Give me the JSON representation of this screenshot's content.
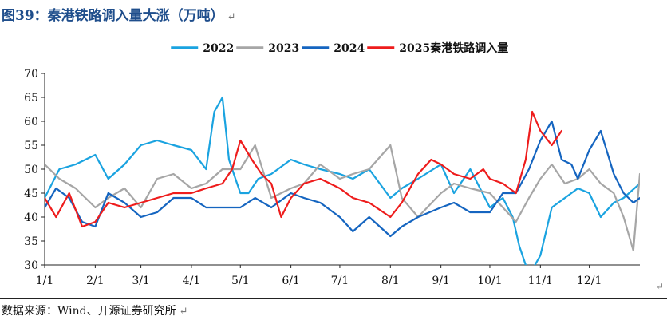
{
  "figure": {
    "title": "图39：秦港铁路调入量大涨（万吨）",
    "source": "数据来源：Wind、开源证券研究所",
    "para_mark": "↵"
  },
  "chart_data": {
    "type": "line",
    "title": "",
    "xlabel": "",
    "ylabel": "",
    "ylim": [
      30,
      70
    ],
    "yticks": [
      30,
      35,
      40,
      45,
      50,
      55,
      60,
      65,
      70
    ],
    "xlim": [
      1,
      366
    ],
    "xtick_labels": [
      "1/1",
      "2/1",
      "3/1",
      "4/1",
      "5/1",
      "6/1",
      "7/1",
      "8/1",
      "9/1",
      "10/1",
      "11/1",
      "12/1"
    ],
    "xtick_days": [
      1,
      32,
      60,
      91,
      121,
      152,
      182,
      213,
      244,
      274,
      305,
      335
    ],
    "grid": false,
    "legend": "top",
    "series": [
      {
        "name": "2022",
        "color": "#1aa3e0",
        "days": [
          1,
          10,
          20,
          32,
          40,
          50,
          60,
          70,
          80,
          91,
          100,
          105,
          110,
          114,
          118,
          121,
          126,
          132,
          140,
          152,
          160,
          170,
          182,
          190,
          200,
          213,
          220,
          230,
          244,
          252,
          262,
          274,
          282,
          288,
          292,
          296,
          300,
          305,
          312,
          320,
          328,
          335,
          342,
          350,
          356,
          366
        ],
        "values": [
          44,
          50,
          51,
          53,
          48,
          51,
          55,
          56,
          55,
          54,
          50,
          62,
          65,
          52,
          48,
          45,
          45,
          48,
          49,
          52,
          51,
          50,
          49,
          48,
          50,
          44,
          46,
          48,
          51,
          45,
          50,
          42,
          44,
          40,
          34,
          30,
          29,
          32,
          42,
          44,
          46,
          45,
          40,
          43,
          44,
          47
        ]
      },
      {
        "name": "2023",
        "color": "#a6a6a6",
        "days": [
          1,
          10,
          20,
          32,
          40,
          50,
          60,
          70,
          80,
          91,
          100,
          110,
          121,
          130,
          140,
          152,
          160,
          170,
          182,
          190,
          200,
          213,
          220,
          230,
          244,
          252,
          262,
          274,
          282,
          290,
          298,
          305,
          312,
          320,
          328,
          335,
          342,
          350,
          356,
          362,
          366
        ],
        "values": [
          51,
          48,
          46,
          42,
          44,
          46,
          42,
          48,
          49,
          46,
          47,
          50,
          50,
          55,
          44,
          46,
          47,
          51,
          48,
          49,
          50,
          55,
          44,
          40,
          45,
          47,
          46,
          45,
          42,
          39,
          44,
          48,
          51,
          47,
          48,
          50,
          47,
          45,
          40,
          33,
          49
        ]
      },
      {
        "name": "2024",
        "color": "#1565c0",
        "days": [
          1,
          8,
          16,
          24,
          32,
          40,
          50,
          60,
          70,
          80,
          91,
          100,
          110,
          121,
          130,
          140,
          152,
          160,
          170,
          182,
          190,
          200,
          213,
          220,
          230,
          244,
          252,
          262,
          274,
          282,
          290,
          298,
          305,
          312,
          318,
          324,
          328,
          335,
          342,
          350,
          356,
          362,
          366
        ],
        "values": [
          42,
          46,
          44,
          39,
          38,
          45,
          43,
          40,
          41,
          44,
          44,
          42,
          42,
          42,
          44,
          42,
          45,
          44,
          43,
          40,
          37,
          40,
          36,
          38,
          40,
          42,
          43,
          41,
          41,
          45,
          45,
          50,
          56,
          60,
          52,
          51,
          48,
          54,
          58,
          49,
          45,
          43,
          44
        ]
      },
      {
        "name": "2025秦港铁路调入量",
        "color": "#ee1c1c",
        "days": [
          1,
          8,
          16,
          24,
          32,
          40,
          50,
          60,
          70,
          80,
          91,
          100,
          110,
          116,
          121,
          128,
          134,
          140,
          146,
          152,
          160,
          170,
          182,
          190,
          200,
          213,
          220,
          230,
          238,
          244,
          252,
          262,
          270,
          274,
          282,
          290,
          296,
          300,
          305,
          312,
          318
        ],
        "values": [
          44,
          40,
          45,
          38,
          39,
          43,
          42,
          43,
          44,
          45,
          45,
          46,
          47,
          50,
          56,
          52,
          49,
          47,
          40,
          44,
          47,
          48,
          46,
          44,
          43,
          40,
          43,
          49,
          52,
          51,
          49,
          48,
          50,
          48,
          47,
          45,
          52,
          62,
          58,
          55,
          58
        ]
      }
    ]
  }
}
